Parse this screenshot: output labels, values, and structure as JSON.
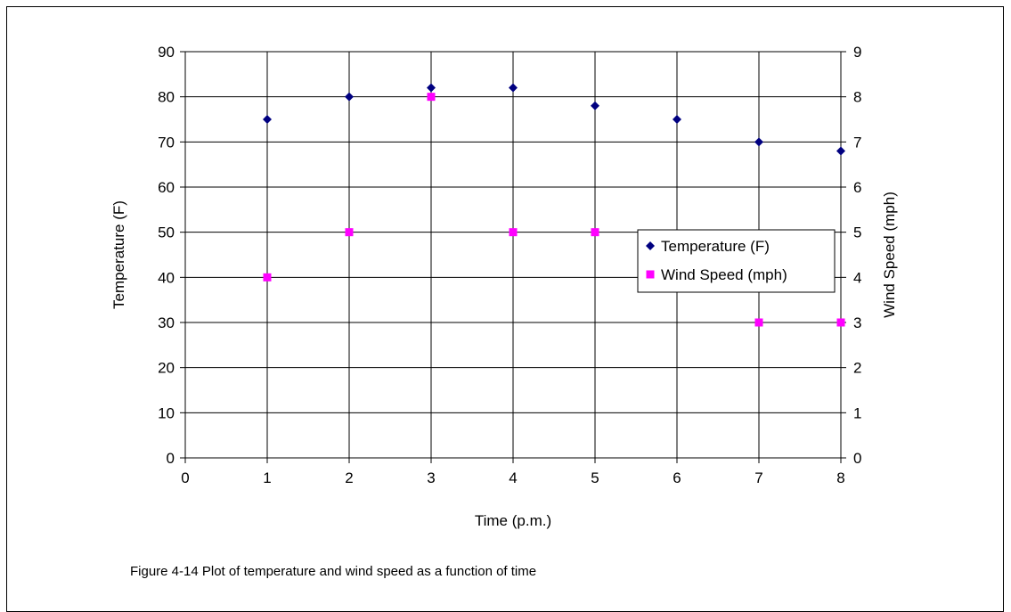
{
  "chart_data": {
    "type": "scatter",
    "xlabel": "Time (p.m.)",
    "ylabel": "Temperature (F)",
    "y2label": "Wind Speed (mph)",
    "xlim": [
      0,
      8
    ],
    "ylim": [
      0,
      90
    ],
    "y2lim": [
      0,
      9
    ],
    "x_ticks": [
      "0",
      "1",
      "2",
      "3",
      "4",
      "5",
      "6",
      "7",
      "8"
    ],
    "y_ticks": [
      "0",
      "10",
      "20",
      "30",
      "40",
      "50",
      "60",
      "70",
      "80",
      "90"
    ],
    "y2_ticks": [
      "0",
      "1",
      "2",
      "3",
      "4",
      "5",
      "6",
      "7",
      "8",
      "9"
    ],
    "grid": true,
    "legend_position": "right",
    "series": [
      {
        "name": "Temperature (F)",
        "axis": "left",
        "marker": "diamond",
        "color": "#000080",
        "x": [
          1,
          2,
          3,
          4,
          5,
          6,
          7,
          8
        ],
        "y": [
          75,
          80,
          82,
          82,
          78,
          75,
          70,
          68
        ]
      },
      {
        "name": "Wind Speed (mph)",
        "axis": "right",
        "marker": "square",
        "color": "#ff00ff",
        "x": [
          1,
          2,
          3,
          4,
          5,
          7,
          8
        ],
        "y": [
          4,
          5,
          8,
          5,
          5,
          3,
          3
        ]
      }
    ]
  },
  "caption": "Figure 4-14  Plot of temperature and wind speed as a function of time"
}
